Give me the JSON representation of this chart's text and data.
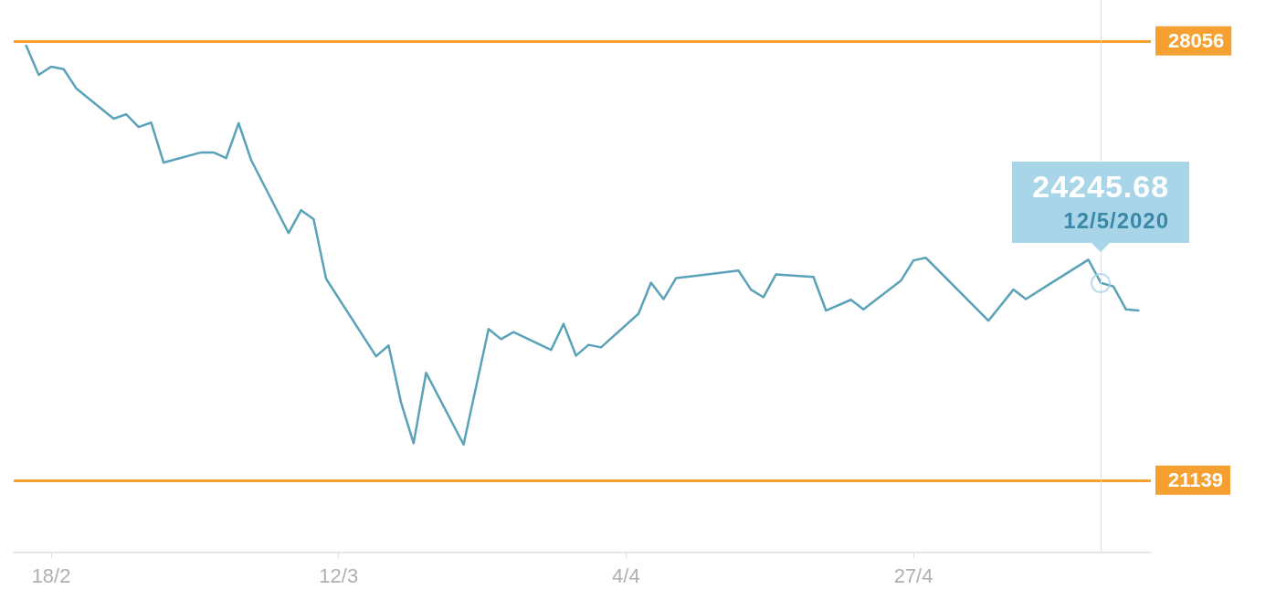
{
  "chart_data": {
    "type": "line",
    "x": [
      "2020-02-16",
      "2020-02-17",
      "2020-02-18",
      "2020-02-19",
      "2020-02-20",
      "2020-02-23",
      "2020-02-24",
      "2020-02-25",
      "2020-02-26",
      "2020-02-27",
      "2020-03-01",
      "2020-03-02",
      "2020-03-03",
      "2020-03-04",
      "2020-03-05",
      "2020-03-08",
      "2020-03-09",
      "2020-03-10",
      "2020-03-11",
      "2020-03-15",
      "2020-03-16",
      "2020-03-17",
      "2020-03-18",
      "2020-03-19",
      "2020-03-22",
      "2020-03-24",
      "2020-03-25",
      "2020-03-26",
      "2020-03-29",
      "2020-03-30",
      "2020-03-31",
      "2020-04-01",
      "2020-04-02",
      "2020-04-05",
      "2020-04-06",
      "2020-04-07",
      "2020-04-08",
      "2020-04-13",
      "2020-04-14",
      "2020-04-15",
      "2020-04-16",
      "2020-04-19",
      "2020-04-20",
      "2020-04-22",
      "2020-04-23",
      "2020-04-26",
      "2020-04-27",
      "2020-04-28",
      "2020-05-03",
      "2020-05-05",
      "2020-05-06",
      "2020-05-08",
      "2020-05-11",
      "2020-05-12",
      "2020-05-13",
      "2020-05-14",
      "2020-05-15"
    ],
    "series": [
      {
        "color": "#5aa2b8",
        "values": [
          27980,
          27520,
          27650,
          27610,
          27310,
          26830,
          26900,
          26700,
          26770,
          26140,
          26300,
          26300,
          26210,
          26760,
          26180,
          25030,
          25390,
          25250,
          24310,
          23090,
          23260,
          22360,
          21720,
          22830,
          21700,
          23520,
          23360,
          23470,
          23190,
          23600,
          23100,
          23270,
          23230,
          23760,
          24250,
          23990,
          24320,
          24440,
          24140,
          24020,
          24380,
          24340,
          23810,
          23980,
          23830,
          24280,
          24600,
          24640,
          23650,
          24140,
          23990,
          24240,
          24610,
          24245.68,
          24190,
          23830,
          23810
        ]
      }
    ],
    "xlim": [
      "2020-02-15",
      "2020-05-16"
    ],
    "xticks": [
      {
        "value": "2020-02-18",
        "label": "18/2"
      },
      {
        "value": "2020-03-12",
        "label": "12/3"
      },
      {
        "value": "2020-04-04",
        "label": "4/4"
      },
      {
        "value": "2020-04-27",
        "label": "27/4"
      }
    ],
    "ylim": [
      20000,
      28700
    ],
    "tick_labels": "x",
    "grid": false,
    "marker": "none",
    "line_style": "solid",
    "ref_lines": [
      {
        "axis": "y",
        "value": 28056,
        "label": "28056",
        "color": "#f5a030"
      },
      {
        "axis": "y",
        "value": 21139,
        "label": "21139",
        "color": "#f5a030"
      },
      {
        "axis": "x",
        "value": "2020-05-12",
        "color": "#e2e2e2"
      }
    ],
    "annotations": [
      {
        "text": "24245.68",
        "x": "2020-05-12",
        "y": 24245.68
      },
      "12/5/2020"
    ]
  }
}
